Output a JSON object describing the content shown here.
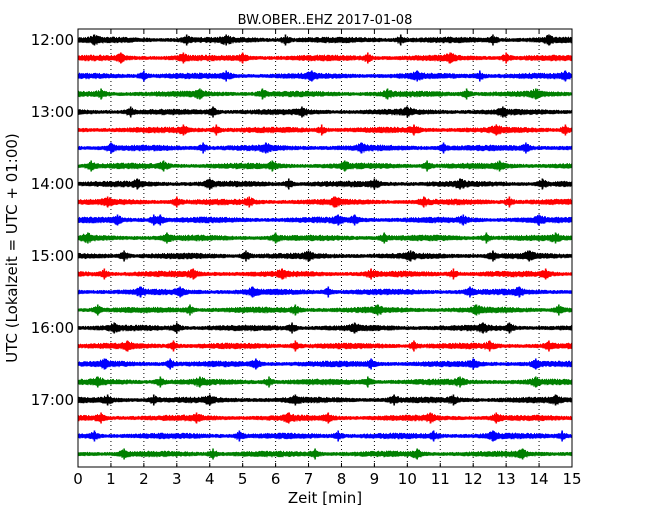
{
  "chart_data": {
    "type": "line",
    "title": "BW.OBER..EHZ 2017-01-08",
    "xlabel": "Zeit  [min]",
    "ylabel": "UTC (Lokalzeit = UTC + 01:00)",
    "xlim": [
      0,
      15
    ],
    "x_ticks": [
      "0",
      "1",
      "2",
      "3",
      "4",
      "5",
      "6",
      "7",
      "8",
      "9",
      "10",
      "11",
      "12",
      "13",
      "14",
      "15"
    ],
    "y_ticks": [
      "12:00",
      "13:00",
      "14:00",
      "15:00",
      "16:00",
      "17:00"
    ],
    "trace_interval_minutes": 15,
    "grid": "vertical dotted lines at each minute",
    "colors": [
      "#000000",
      "#ff0000",
      "#0000ff",
      "#008000"
    ],
    "series": [
      {
        "start": "12:00",
        "color": "#000000",
        "events": [
          0.5,
          3.3,
          4.5,
          6.3,
          9.8,
          12.6,
          14.3
        ]
      },
      {
        "start": "12:15",
        "color": "#ff0000",
        "events": [
          1.3,
          3.2,
          5.0,
          8.8,
          11.3,
          13.0
        ]
      },
      {
        "start": "12:30",
        "color": "#0000ff",
        "events": [
          2.0,
          4.5,
          7.1,
          10.3,
          12.2,
          14.8
        ]
      },
      {
        "start": "12:45",
        "color": "#008000",
        "events": [
          0.7,
          3.7,
          5.6,
          9.4,
          11.8,
          13.9
        ]
      },
      {
        "start": "13:00",
        "color": "#000000",
        "events": [
          1.6,
          4.1,
          6.8,
          10.0,
          12.9
        ]
      },
      {
        "start": "13:15",
        "color": "#ff0000",
        "events": [
          3.2,
          4.2,
          7.4,
          10.2,
          12.7,
          14.8
        ]
      },
      {
        "start": "13:30",
        "color": "#0000ff",
        "events": [
          1.0,
          3.8,
          5.7,
          8.6,
          11.1,
          13.6
        ]
      },
      {
        "start": "13:45",
        "color": "#008000",
        "events": [
          0.4,
          2.6,
          5.9,
          8.1,
          10.6,
          12.8
        ]
      },
      {
        "start": "14:00",
        "color": "#000000",
        "events": [
          1.8,
          4.0,
          6.4,
          9.0,
          11.6,
          14.1
        ]
      },
      {
        "start": "14:15",
        "color": "#ff0000",
        "events": [
          0.9,
          3.0,
          5.2,
          7.8,
          10.5,
          13.1
        ]
      },
      {
        "start": "14:30",
        "color": "#0000ff",
        "events": [
          1.2,
          2.3,
          2.5,
          7.9,
          8.4,
          11.7,
          14.0
        ]
      },
      {
        "start": "14:45",
        "color": "#008000",
        "events": [
          0.3,
          2.7,
          6.0,
          9.3,
          12.4,
          14.5
        ]
      },
      {
        "start": "15:00",
        "color": "#000000",
        "events": [
          1.4,
          5.1,
          7.0,
          10.1,
          12.6,
          13.7
        ]
      },
      {
        "start": "15:15",
        "color": "#ff0000",
        "events": [
          0.8,
          3.5,
          6.2,
          8.9,
          11.4,
          14.2
        ]
      },
      {
        "start": "15:30",
        "color": "#0000ff",
        "events": [
          1.9,
          3.1,
          5.3,
          7.6,
          11.9,
          13.4
        ]
      },
      {
        "start": "15:45",
        "color": "#008000",
        "events": [
          0.6,
          3.4,
          6.6,
          9.1,
          12.1,
          14.6
        ]
      },
      {
        "start": "16:00",
        "color": "#000000",
        "events": [
          1.1,
          3.0,
          6.5,
          8.4,
          12.3,
          13.1
        ]
      },
      {
        "start": "16:15",
        "color": "#ff0000",
        "events": [
          1.5,
          2.9,
          6.6,
          10.2,
          12.5,
          14.3
        ]
      },
      {
        "start": "16:30",
        "color": "#0000ff",
        "events": [
          0.8,
          2.8,
          5.4,
          8.9,
          12.0,
          13.9
        ]
      },
      {
        "start": "16:45",
        "color": "#008000",
        "events": [
          0.6,
          2.5,
          3.7,
          5.8,
          8.8,
          11.6,
          13.9
        ]
      },
      {
        "start": "17:00",
        "color": "#000000",
        "events": [
          0.9,
          2.3,
          4.0,
          6.6,
          9.6,
          11.4,
          14.5
        ]
      },
      {
        "start": "17:15",
        "color": "#ff0000",
        "events": [
          0.7,
          3.6,
          6.4,
          7.6,
          10.7,
          12.7
        ]
      },
      {
        "start": "17:30",
        "color": "#0000ff",
        "events": [
          0.5,
          4.9,
          7.9,
          10.8,
          12.6,
          14.7
        ]
      },
      {
        "start": "17:45",
        "color": "#008000",
        "events": [
          1.4,
          4.1,
          7.2,
          10.3,
          13.5
        ]
      }
    ]
  }
}
